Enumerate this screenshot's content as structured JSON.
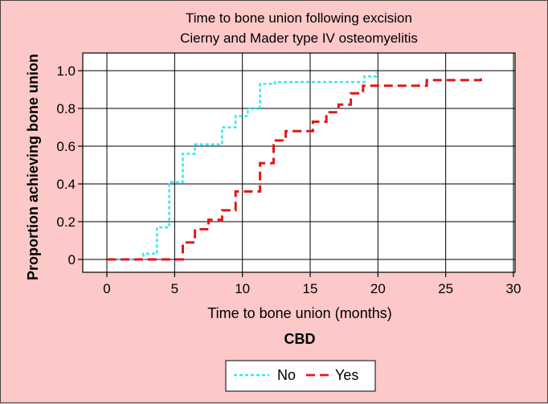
{
  "chart_data": {
    "type": "line",
    "step": true,
    "title_lines": [
      "Time to bone union following excision",
      "Cierny and Mader type IV osteomyelitis"
    ],
    "xlabel": "Time to bone union (months)",
    "ylabel": "Proportion achieving bone union",
    "subtitle": "CBD",
    "xlim": [
      0,
      30
    ],
    "ylim": [
      0,
      1.0
    ],
    "x_ticks": [
      0,
      5,
      10,
      15,
      20,
      25,
      30
    ],
    "y_ticks": [
      0,
      0.2,
      0.4,
      0.6,
      0.8,
      1.0
    ],
    "x_tick_labels": [
      "0",
      "5",
      "10",
      "15",
      "20",
      "25",
      "30"
    ],
    "y_tick_labels": [
      "0",
      "0.2",
      "0.4",
      "0.6",
      "0.8",
      "1.0"
    ],
    "grid": true,
    "legend_position": "bottom",
    "legend_title": "",
    "series": [
      {
        "name": "No",
        "color": "#33e6f0",
        "dash": "short-dash",
        "points": [
          [
            0,
            0
          ],
          [
            2.7,
            0
          ],
          [
            2.7,
            0.03
          ],
          [
            3.7,
            0.03
          ],
          [
            3.7,
            0.17
          ],
          [
            4.6,
            0.17
          ],
          [
            4.6,
            0.41
          ],
          [
            5.6,
            0.41
          ],
          [
            5.6,
            0.56
          ],
          [
            6.5,
            0.56
          ],
          [
            6.5,
            0.61
          ],
          [
            8.5,
            0.61
          ],
          [
            8.5,
            0.7
          ],
          [
            9.5,
            0.7
          ],
          [
            9.5,
            0.76
          ],
          [
            10.4,
            0.76
          ],
          [
            10.4,
            0.8
          ],
          [
            11.3,
            0.8
          ],
          [
            11.3,
            0.93
          ],
          [
            12.4,
            0.93
          ],
          [
            12.4,
            0.94
          ],
          [
            19.0,
            0.94
          ],
          [
            19.0,
            0.97
          ],
          [
            19.9,
            0.97
          ],
          [
            19.9,
            0.99
          ]
        ]
      },
      {
        "name": "Yes",
        "color": "#e01818",
        "dash": "long-dash",
        "points": [
          [
            0,
            0
          ],
          [
            5.6,
            0
          ],
          [
            5.6,
            0.09
          ],
          [
            6.5,
            0.09
          ],
          [
            6.5,
            0.16
          ],
          [
            7.5,
            0.16
          ],
          [
            7.5,
            0.21
          ],
          [
            8.5,
            0.21
          ],
          [
            8.5,
            0.26
          ],
          [
            9.5,
            0.26
          ],
          [
            9.5,
            0.36
          ],
          [
            11.3,
            0.36
          ],
          [
            11.3,
            0.51
          ],
          [
            12.3,
            0.51
          ],
          [
            12.3,
            0.63
          ],
          [
            13.2,
            0.63
          ],
          [
            13.2,
            0.68
          ],
          [
            15.2,
            0.68
          ],
          [
            15.2,
            0.73
          ],
          [
            16.2,
            0.73
          ],
          [
            16.2,
            0.78
          ],
          [
            17.1,
            0.78
          ],
          [
            17.1,
            0.82
          ],
          [
            18.0,
            0.82
          ],
          [
            18.0,
            0.88
          ],
          [
            18.9,
            0.88
          ],
          [
            18.9,
            0.92
          ],
          [
            23.6,
            0.92
          ],
          [
            23.6,
            0.95
          ],
          [
            27.6,
            0.95
          ],
          [
            27.6,
            0.98
          ]
        ]
      }
    ]
  }
}
